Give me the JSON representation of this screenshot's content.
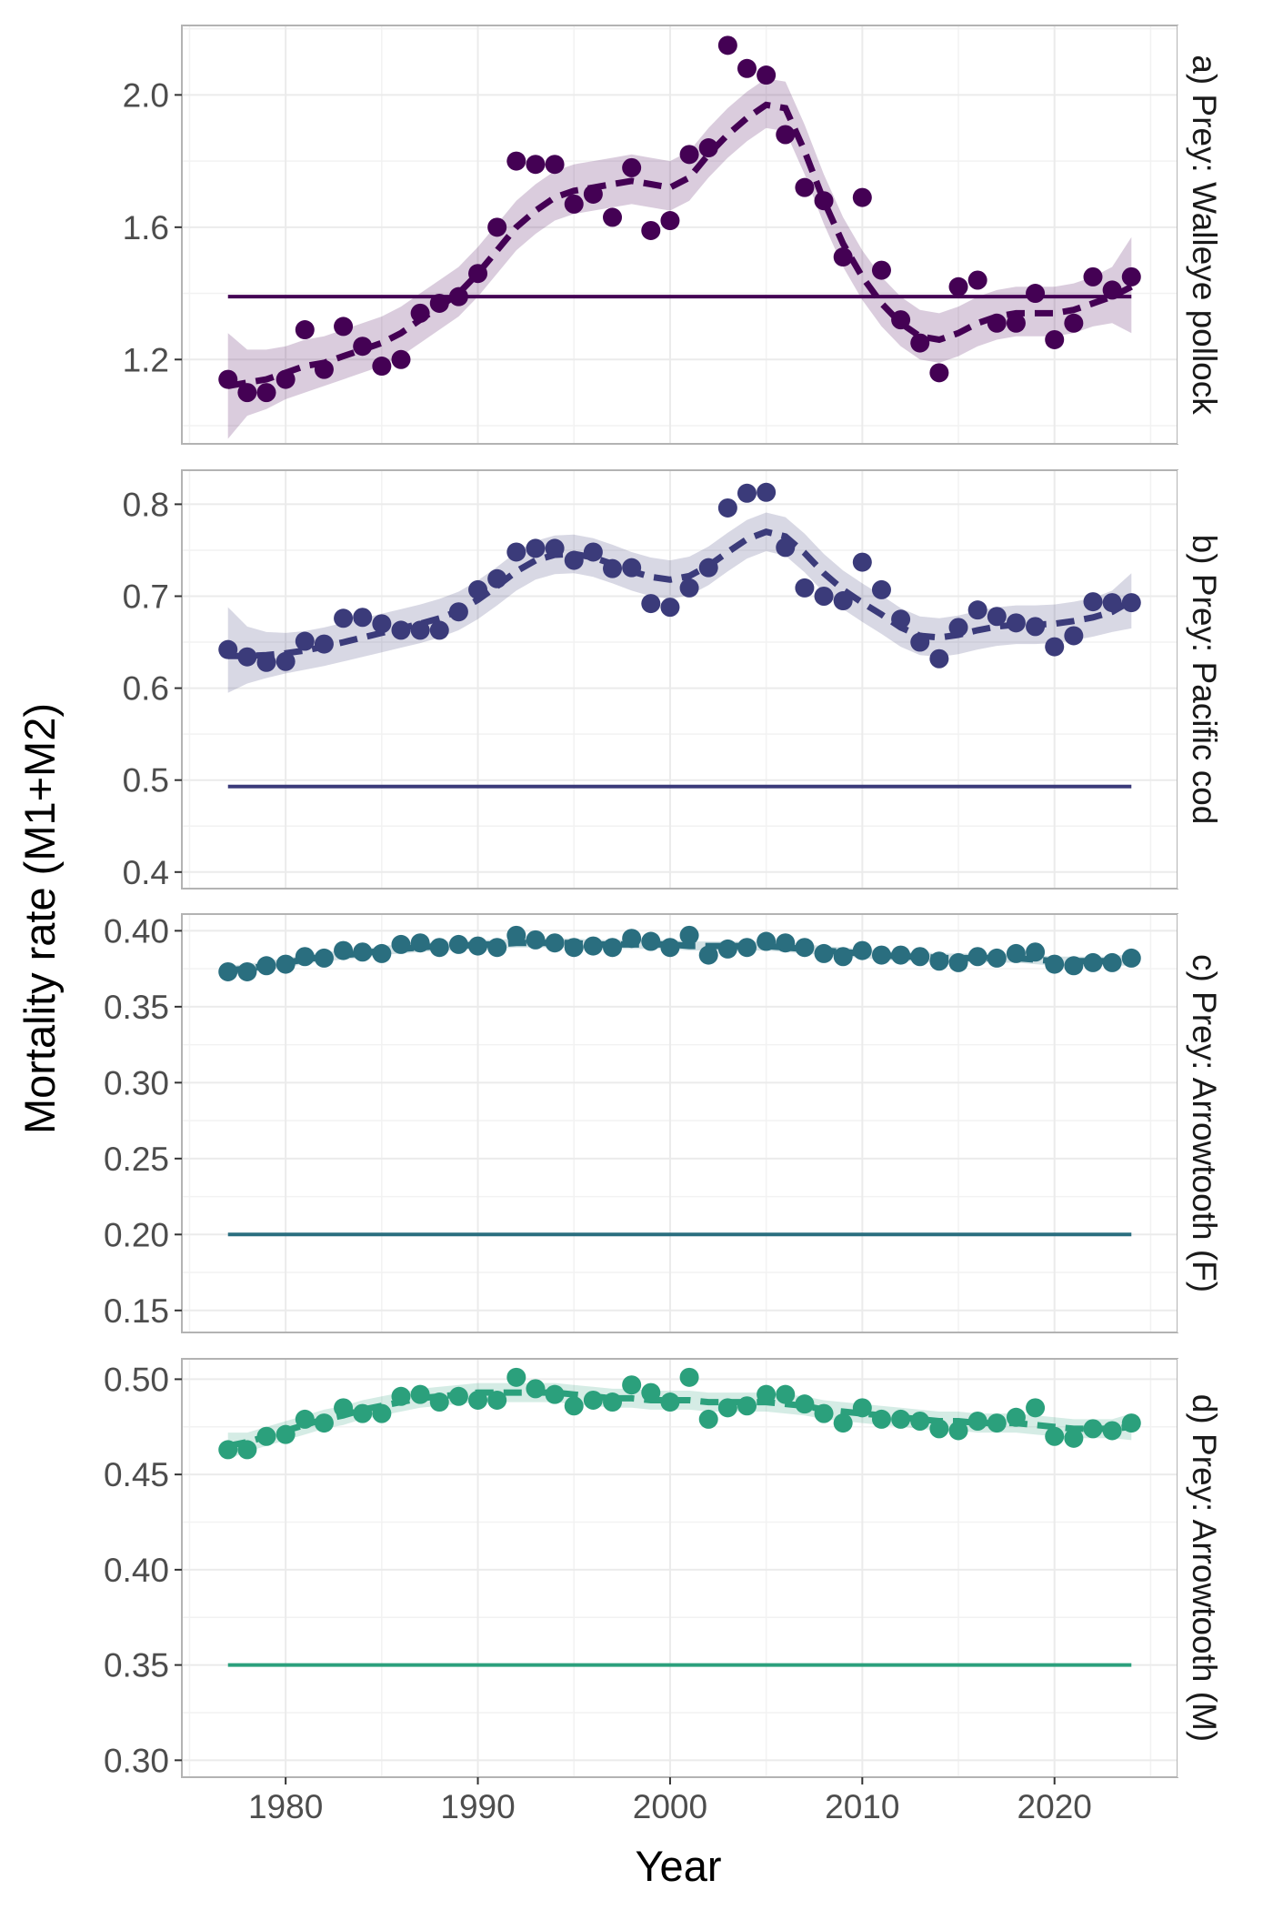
{
  "xlabel": "Year",
  "ylabel": "Mortality rate (M1+M2)",
  "x_ticks": [
    1980,
    1990,
    2000,
    2010,
    2020
  ],
  "chart_data": [
    {
      "type": "scatter",
      "panel": "a) Prey: Walleye pollock",
      "color": "#440154",
      "xlim": [
        1974.6,
        2026.4
      ],
      "ylim": [
        0.945,
        2.21
      ],
      "y_ticks": [
        "1.2",
        "1.6",
        "2.0"
      ],
      "reference_line": 1.39,
      "x": [
        1977,
        1978,
        1979,
        1980,
        1981,
        1982,
        1983,
        1984,
        1985,
        1986,
        1987,
        1988,
        1989,
        1990,
        1991,
        1992,
        1993,
        1994,
        1995,
        1996,
        1997,
        1998,
        1999,
        2000,
        2001,
        2002,
        2003,
        2004,
        2005,
        2006,
        2007,
        2008,
        2009,
        2010,
        2011,
        2012,
        2013,
        2014,
        2015,
        2016,
        2017,
        2018,
        2019,
        2020,
        2021,
        2022,
        2023,
        2024
      ],
      "observed": [
        1.14,
        1.1,
        1.1,
        1.14,
        1.29,
        1.17,
        1.3,
        1.24,
        1.18,
        1.2,
        1.34,
        1.37,
        1.39,
        1.46,
        1.6,
        1.8,
        1.79,
        1.79,
        1.67,
        1.7,
        1.63,
        1.78,
        1.59,
        1.62,
        1.82,
        1.84,
        2.15,
        2.08,
        2.06,
        1.88,
        1.72,
        1.68,
        1.51,
        1.69,
        1.47,
        1.32,
        1.25,
        1.16,
        1.42,
        1.44,
        1.31,
        1.31,
        1.4,
        1.26,
        1.31,
        1.45,
        1.41,
        1.45
      ],
      "fitted": [
        1.12,
        1.13,
        1.14,
        1.16,
        1.18,
        1.19,
        1.21,
        1.23,
        1.25,
        1.28,
        1.32,
        1.36,
        1.4,
        1.46,
        1.53,
        1.6,
        1.65,
        1.69,
        1.71,
        1.72,
        1.73,
        1.74,
        1.73,
        1.72,
        1.75,
        1.82,
        1.88,
        1.93,
        1.97,
        1.96,
        1.83,
        1.68,
        1.55,
        1.45,
        1.37,
        1.31,
        1.27,
        1.26,
        1.28,
        1.31,
        1.33,
        1.34,
        1.34,
        1.34,
        1.35,
        1.37,
        1.39,
        1.42
      ],
      "lower": [
        0.96,
        1.03,
        1.05,
        1.08,
        1.1,
        1.12,
        1.14,
        1.16,
        1.18,
        1.21,
        1.25,
        1.29,
        1.33,
        1.39,
        1.46,
        1.53,
        1.58,
        1.62,
        1.64,
        1.65,
        1.66,
        1.67,
        1.66,
        1.65,
        1.68,
        1.75,
        1.81,
        1.86,
        1.9,
        1.89,
        1.76,
        1.61,
        1.48,
        1.38,
        1.3,
        1.24,
        1.2,
        1.19,
        1.21,
        1.24,
        1.26,
        1.27,
        1.27,
        1.27,
        1.28,
        1.3,
        1.31,
        1.28
      ],
      "upper": [
        1.28,
        1.23,
        1.23,
        1.24,
        1.26,
        1.27,
        1.29,
        1.31,
        1.33,
        1.36,
        1.4,
        1.44,
        1.48,
        1.54,
        1.61,
        1.68,
        1.73,
        1.77,
        1.79,
        1.8,
        1.81,
        1.82,
        1.81,
        1.8,
        1.83,
        1.9,
        1.96,
        2.01,
        2.05,
        2.04,
        1.91,
        1.76,
        1.63,
        1.53,
        1.45,
        1.39,
        1.35,
        1.34,
        1.36,
        1.39,
        1.41,
        1.42,
        1.42,
        1.42,
        1.43,
        1.45,
        1.48,
        1.57
      ]
    },
    {
      "type": "scatter",
      "panel": "b) Prey: Pacific cod",
      "color": "#3b3b7a",
      "xlim": [
        1974.6,
        2026.4
      ],
      "ylim": [
        0.382,
        0.837
      ],
      "y_ticks": [
        "0.4",
        "0.5",
        "0.6",
        "0.7",
        "0.8"
      ],
      "reference_line": 0.493,
      "x": [
        1977,
        1978,
        1979,
        1980,
        1981,
        1982,
        1983,
        1984,
        1985,
        1986,
        1987,
        1988,
        1989,
        1990,
        1991,
        1992,
        1993,
        1994,
        1995,
        1996,
        1997,
        1998,
        1999,
        2000,
        2001,
        2002,
        2003,
        2004,
        2005,
        2006,
        2007,
        2008,
        2009,
        2010,
        2011,
        2012,
        2013,
        2014,
        2015,
        2016,
        2017,
        2018,
        2019,
        2020,
        2021,
        2022,
        2023,
        2024
      ],
      "observed": [
        0.642,
        0.634,
        0.628,
        0.629,
        0.651,
        0.648,
        0.676,
        0.677,
        0.67,
        0.663,
        0.663,
        0.663,
        0.683,
        0.707,
        0.719,
        0.748,
        0.752,
        0.752,
        0.739,
        0.748,
        0.73,
        0.731,
        0.692,
        0.688,
        0.709,
        0.731,
        0.796,
        0.812,
        0.813,
        0.753,
        0.709,
        0.7,
        0.695,
        0.737,
        0.707,
        0.675,
        0.65,
        0.632,
        0.666,
        0.685,
        0.678,
        0.671,
        0.667,
        0.645,
        0.657,
        0.694,
        0.693,
        0.693
      ],
      "fitted": [
        0.635,
        0.635,
        0.636,
        0.638,
        0.641,
        0.645,
        0.65,
        0.655,
        0.66,
        0.665,
        0.67,
        0.676,
        0.684,
        0.696,
        0.711,
        0.727,
        0.739,
        0.745,
        0.746,
        0.742,
        0.735,
        0.727,
        0.721,
        0.718,
        0.722,
        0.733,
        0.748,
        0.762,
        0.77,
        0.765,
        0.747,
        0.725,
        0.707,
        0.693,
        0.68,
        0.666,
        0.657,
        0.655,
        0.658,
        0.663,
        0.667,
        0.669,
        0.669,
        0.67,
        0.673,
        0.677,
        0.683,
        0.695
      ],
      "lower": [
        0.595,
        0.605,
        0.611,
        0.616,
        0.62,
        0.624,
        0.629,
        0.634,
        0.639,
        0.644,
        0.649,
        0.655,
        0.663,
        0.675,
        0.69,
        0.706,
        0.718,
        0.724,
        0.725,
        0.721,
        0.714,
        0.706,
        0.7,
        0.697,
        0.701,
        0.712,
        0.727,
        0.741,
        0.749,
        0.744,
        0.726,
        0.704,
        0.686,
        0.672,
        0.659,
        0.645,
        0.636,
        0.634,
        0.637,
        0.642,
        0.646,
        0.648,
        0.648,
        0.649,
        0.652,
        0.656,
        0.661,
        0.665
      ],
      "upper": [
        0.688,
        0.667,
        0.661,
        0.66,
        0.662,
        0.666,
        0.671,
        0.676,
        0.681,
        0.686,
        0.691,
        0.697,
        0.705,
        0.717,
        0.732,
        0.748,
        0.76,
        0.766,
        0.767,
        0.763,
        0.756,
        0.748,
        0.742,
        0.739,
        0.743,
        0.754,
        0.769,
        0.783,
        0.791,
        0.786,
        0.768,
        0.746,
        0.728,
        0.714,
        0.701,
        0.687,
        0.678,
        0.676,
        0.679,
        0.684,
        0.688,
        0.69,
        0.69,
        0.691,
        0.694,
        0.698,
        0.706,
        0.725
      ]
    },
    {
      "type": "scatter",
      "panel": "c) Prey: Arrowtooth (F)",
      "color": "#2a6e7f",
      "xlim": [
        1974.6,
        2026.4
      ],
      "ylim": [
        0.1355,
        0.411
      ],
      "y_ticks": [
        "0.15",
        "0.20",
        "0.25",
        "0.30",
        "0.35",
        "0.40"
      ],
      "reference_line": 0.2,
      "x": [
        1977,
        1978,
        1979,
        1980,
        1981,
        1982,
        1983,
        1984,
        1985,
        1986,
        1987,
        1988,
        1989,
        1990,
        1991,
        1992,
        1993,
        1994,
        1995,
        1996,
        1997,
        1998,
        1999,
        2000,
        2001,
        2002,
        2003,
        2004,
        2005,
        2006,
        2007,
        2008,
        2009,
        2010,
        2011,
        2012,
        2013,
        2014,
        2015,
        2016,
        2017,
        2018,
        2019,
        2020,
        2021,
        2022,
        2023,
        2024
      ],
      "observed": [
        0.373,
        0.373,
        0.377,
        0.378,
        0.383,
        0.382,
        0.387,
        0.386,
        0.385,
        0.391,
        0.392,
        0.389,
        0.391,
        0.39,
        0.389,
        0.397,
        0.394,
        0.392,
        0.389,
        0.39,
        0.389,
        0.395,
        0.393,
        0.389,
        0.397,
        0.384,
        0.388,
        0.389,
        0.393,
        0.392,
        0.389,
        0.385,
        0.383,
        0.387,
        0.384,
        0.384,
        0.383,
        0.38,
        0.379,
        0.383,
        0.382,
        0.385,
        0.386,
        0.378,
        0.377,
        0.379,
        0.379,
        0.382
      ],
      "fitted": [
        0.374,
        0.375,
        0.377,
        0.379,
        0.381,
        0.383,
        0.384,
        0.385,
        0.387,
        0.388,
        0.389,
        0.39,
        0.39,
        0.391,
        0.391,
        0.392,
        0.392,
        0.392,
        0.392,
        0.391,
        0.391,
        0.391,
        0.391,
        0.391,
        0.39,
        0.39,
        0.39,
        0.39,
        0.39,
        0.389,
        0.388,
        0.387,
        0.386,
        0.385,
        0.384,
        0.383,
        0.383,
        0.382,
        0.382,
        0.382,
        0.382,
        0.382,
        0.381,
        0.38,
        0.38,
        0.38,
        0.38,
        0.381
      ],
      "lower": [
        0.371,
        0.372,
        0.374,
        0.376,
        0.378,
        0.38,
        0.381,
        0.382,
        0.384,
        0.385,
        0.386,
        0.387,
        0.387,
        0.388,
        0.388,
        0.389,
        0.389,
        0.389,
        0.389,
        0.388,
        0.388,
        0.388,
        0.388,
        0.388,
        0.387,
        0.387,
        0.387,
        0.387,
        0.387,
        0.386,
        0.385,
        0.384,
        0.383,
        0.382,
        0.381,
        0.38,
        0.38,
        0.379,
        0.379,
        0.379,
        0.379,
        0.379,
        0.378,
        0.377,
        0.377,
        0.377,
        0.377,
        0.377
      ],
      "upper": [
        0.377,
        0.378,
        0.38,
        0.382,
        0.384,
        0.386,
        0.387,
        0.388,
        0.39,
        0.391,
        0.392,
        0.393,
        0.393,
        0.394,
        0.394,
        0.395,
        0.395,
        0.395,
        0.395,
        0.394,
        0.394,
        0.394,
        0.394,
        0.394,
        0.393,
        0.393,
        0.393,
        0.393,
        0.393,
        0.392,
        0.391,
        0.39,
        0.389,
        0.388,
        0.387,
        0.386,
        0.386,
        0.385,
        0.385,
        0.385,
        0.385,
        0.385,
        0.384,
        0.383,
        0.383,
        0.383,
        0.383,
        0.385
      ]
    },
    {
      "type": "scatter",
      "panel": "d) Prey: Arrowtooth (M)",
      "color": "#2ba07c",
      "xlim": [
        1974.6,
        2026.4
      ],
      "ylim": [
        0.2911,
        0.5107
      ],
      "y_ticks": [
        "0.30",
        "0.35",
        "0.40",
        "0.45",
        "0.50"
      ],
      "reference_line": 0.35,
      "x": [
        1977,
        1978,
        1979,
        1980,
        1981,
        1982,
        1983,
        1984,
        1985,
        1986,
        1987,
        1988,
        1989,
        1990,
        1991,
        1992,
        1993,
        1994,
        1995,
        1996,
        1997,
        1998,
        1999,
        2000,
        2001,
        2002,
        2003,
        2004,
        2005,
        2006,
        2007,
        2008,
        2009,
        2010,
        2011,
        2012,
        2013,
        2014,
        2015,
        2016,
        2017,
        2018,
        2019,
        2020,
        2021,
        2022,
        2023,
        2024
      ],
      "observed": [
        0.463,
        0.463,
        0.47,
        0.471,
        0.479,
        0.477,
        0.485,
        0.482,
        0.482,
        0.491,
        0.492,
        0.488,
        0.491,
        0.489,
        0.489,
        0.501,
        0.495,
        0.492,
        0.486,
        0.489,
        0.488,
        0.497,
        0.493,
        0.488,
        0.501,
        0.479,
        0.485,
        0.486,
        0.492,
        0.492,
        0.487,
        0.482,
        0.477,
        0.485,
        0.479,
        0.479,
        0.478,
        0.474,
        0.473,
        0.478,
        0.477,
        0.48,
        0.485,
        0.47,
        0.469,
        0.474,
        0.473,
        0.477
      ],
      "fitted": [
        0.465,
        0.467,
        0.47,
        0.473,
        0.476,
        0.479,
        0.481,
        0.484,
        0.486,
        0.488,
        0.49,
        0.491,
        0.492,
        0.493,
        0.493,
        0.493,
        0.493,
        0.493,
        0.492,
        0.491,
        0.49,
        0.49,
        0.489,
        0.489,
        0.489,
        0.488,
        0.488,
        0.488,
        0.488,
        0.487,
        0.486,
        0.484,
        0.483,
        0.482,
        0.481,
        0.48,
        0.479,
        0.478,
        0.478,
        0.477,
        0.477,
        0.477,
        0.476,
        0.475,
        0.474,
        0.474,
        0.474,
        0.475
      ],
      "lower": [
        0.458,
        0.462,
        0.465,
        0.468,
        0.471,
        0.474,
        0.476,
        0.479,
        0.481,
        0.483,
        0.485,
        0.486,
        0.487,
        0.488,
        0.488,
        0.488,
        0.488,
        0.488,
        0.487,
        0.486,
        0.485,
        0.485,
        0.484,
        0.484,
        0.484,
        0.483,
        0.483,
        0.483,
        0.483,
        0.482,
        0.481,
        0.479,
        0.478,
        0.477,
        0.476,
        0.475,
        0.474,
        0.473,
        0.473,
        0.472,
        0.472,
        0.472,
        0.471,
        0.47,
        0.469,
        0.469,
        0.469,
        0.468
      ],
      "upper": [
        0.472,
        0.472,
        0.475,
        0.478,
        0.481,
        0.484,
        0.486,
        0.489,
        0.491,
        0.493,
        0.495,
        0.496,
        0.497,
        0.498,
        0.498,
        0.498,
        0.498,
        0.498,
        0.497,
        0.496,
        0.495,
        0.495,
        0.494,
        0.494,
        0.494,
        0.493,
        0.493,
        0.493,
        0.493,
        0.492,
        0.491,
        0.489,
        0.488,
        0.487,
        0.486,
        0.485,
        0.484,
        0.483,
        0.483,
        0.482,
        0.482,
        0.482,
        0.481,
        0.48,
        0.479,
        0.479,
        0.479,
        0.482
      ]
    }
  ]
}
